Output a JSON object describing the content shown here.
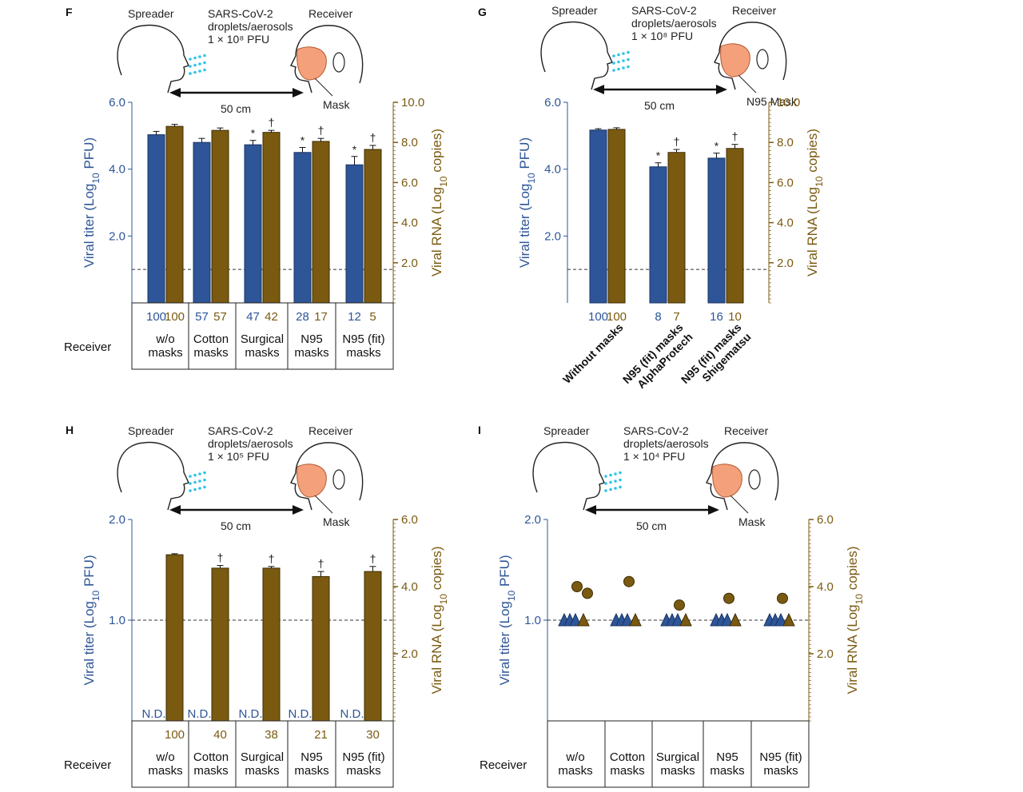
{
  "colors": {
    "titer": "#2d5597",
    "rna": "#7a5a10",
    "aerosol": "#2ec4e6",
    "mask": "#f4a07a",
    "dashed": "#333333"
  },
  "icons": [
    "spreader-head-icon",
    "receiver-head-icon",
    "aerosol-droplets-icon",
    "mask-icon",
    "double-arrow-icon"
  ],
  "chart_data": [
    {
      "panel": "F",
      "type": "bar",
      "diagram": {
        "spreader": "Spreader",
        "receiver": "Receiver",
        "virus_lines": [
          "SARS-CoV-2",
          "droplets/aerosols"
        ],
        "dose": "1 × 10⁸ PFU",
        "distance": "50 cm",
        "mask": "Mask"
      },
      "ylabel_left": "Viral titer (Log10 PFU)",
      "ylabel_right": "Viral RNA (Log10 copies)",
      "left_ticks": [
        "2.0",
        "4.0",
        "6.0"
      ],
      "right_ticks": [
        "2.0",
        "4.0",
        "6.0",
        "8.0",
        "10.0"
      ],
      "ylim_left": [
        0,
        6
      ],
      "ylim_right": [
        0,
        10
      ],
      "detection_limit": 1.0,
      "row_label": "Receiver",
      "categories": [
        [
          "w/o",
          "masks"
        ],
        [
          "Cotton",
          "masks"
        ],
        [
          "Surgical",
          "masks"
        ],
        [
          "N95",
          "masks"
        ],
        [
          "N95 (fit)",
          "masks"
        ]
      ],
      "series": [
        {
          "name": "Viral titer",
          "axis": "left",
          "values": [
            5.03,
            4.8,
            4.73,
            4.5,
            4.13
          ],
          "errors": [
            0.1,
            0.12,
            0.13,
            0.15,
            0.25
          ],
          "marks": [
            "",
            "",
            "*",
            "*",
            "*"
          ],
          "percent": [
            "100",
            "57",
            "47",
            "28",
            "12"
          ]
        },
        {
          "name": "Viral RNA",
          "axis": "right",
          "values": [
            8.8,
            8.6,
            8.5,
            8.05,
            7.65
          ],
          "errors": [
            0.1,
            0.12,
            0.1,
            0.15,
            0.2
          ],
          "marks": [
            "",
            "",
            "†",
            "†",
            "†"
          ],
          "percent": [
            "100",
            "57",
            "42",
            "17",
            "5"
          ]
        }
      ]
    },
    {
      "panel": "G",
      "type": "bar",
      "diagram": {
        "spreader": "Spreader",
        "receiver": "Receiver",
        "virus_lines": [
          "SARS-CoV-2",
          "droplets/aerosols"
        ],
        "dose": "1 × 10⁸ PFU",
        "distance": "50 cm",
        "mask": "N95 Mask"
      },
      "ylabel_left": "Viral titer (Log10 PFU)",
      "ylabel_right": "Viral RNA (Log10 copies)",
      "left_ticks": [
        "2.0",
        "4.0",
        "6.0"
      ],
      "right_ticks": [
        "2.0",
        "4.0",
        "6.0",
        "8.0",
        "10.0"
      ],
      "ylim_left": [
        0,
        6
      ],
      "ylim_right": [
        0,
        10
      ],
      "detection_limit": 1.0,
      "categories": [
        [
          "Without masks"
        ],
        [
          "N95 (fit) masks",
          "AlphaProtech"
        ],
        [
          "N95 (fit) masks",
          "Shigematsu"
        ]
      ],
      "series": [
        {
          "name": "Viral titer",
          "axis": "left",
          "values": [
            5.17,
            4.07,
            4.33
          ],
          "errors": [
            0.04,
            0.12,
            0.15
          ],
          "marks": [
            "",
            "*",
            "*"
          ],
          "percent": [
            "100",
            "8",
            "16"
          ]
        },
        {
          "name": "Viral RNA",
          "axis": "right",
          "values": [
            8.65,
            7.5,
            7.7
          ],
          "errors": [
            0.08,
            0.15,
            0.2
          ],
          "marks": [
            "",
            "†",
            "†"
          ],
          "percent": [
            "100",
            "7",
            "10"
          ]
        }
      ]
    },
    {
      "panel": "H",
      "type": "bar",
      "diagram": {
        "spreader": "Spreader",
        "receiver": "Receiver",
        "virus_lines": [
          "SARS-CoV-2",
          "droplets/aerosols"
        ],
        "dose": "1 × 10⁵ PFU",
        "distance": "50 cm",
        "mask": "Mask"
      },
      "ylabel_left": "Viral titer (Log10 PFU)",
      "ylabel_right": "Viral RNA (Log10 copies)",
      "left_ticks": [
        "1.0",
        "2.0"
      ],
      "right_ticks": [
        "2.0",
        "4.0",
        "6.0"
      ],
      "ylim_left": [
        0,
        2
      ],
      "ylim_right": [
        0,
        6
      ],
      "detection_limit": 1.0,
      "row_label": "Receiver",
      "categories": [
        [
          "w/o",
          "masks"
        ],
        [
          "Cotton",
          "masks"
        ],
        [
          "Surgical",
          "masks"
        ],
        [
          "N95",
          "masks"
        ],
        [
          "N95 (fit)",
          "masks"
        ]
      ],
      "series": [
        {
          "name": "Viral titer",
          "axis": "left",
          "values": [
            null,
            null,
            null,
            null,
            null
          ],
          "labels": [
            "N.D.",
            "N.D.",
            "N.D.",
            "N.D.",
            "N.D."
          ]
        },
        {
          "name": "Viral RNA",
          "axis": "right",
          "values": [
            4.95,
            4.55,
            4.55,
            4.3,
            4.45
          ],
          "errors": [
            0.03,
            0.08,
            0.05,
            0.15,
            0.15
          ],
          "marks": [
            "",
            "†",
            "†",
            "†",
            "†"
          ],
          "percent": [
            "100",
            "40",
            "38",
            "21",
            "30"
          ]
        }
      ]
    },
    {
      "panel": "I",
      "type": "scatter",
      "diagram": {
        "spreader": "Spreader",
        "receiver": "Receiver",
        "virus_lines": [
          "SARS-CoV-2",
          "droplets/aerosols"
        ],
        "dose": "1 × 10⁴ PFU",
        "distance": "50 cm",
        "mask": "Mask"
      },
      "ylabel_left": "Viral titer (Log10 PFU)",
      "ylabel_right": "Viral RNA (Log10 copies)",
      "left_ticks": [
        "1.0",
        "2.0"
      ],
      "right_ticks": [
        "2.0",
        "4.0",
        "6.0"
      ],
      "ylim_left": [
        0,
        2
      ],
      "ylim_right": [
        0,
        6
      ],
      "detection_limit": 1.0,
      "row_label": "Receiver",
      "categories": [
        [
          "w/o",
          "masks"
        ],
        [
          "Cotton",
          "masks"
        ],
        [
          "Surgical",
          "masks"
        ],
        [
          "N95",
          "masks"
        ],
        [
          "N95 (fit)",
          "masks"
        ]
      ],
      "titer_triangles": [
        3,
        3,
        3,
        3,
        3
      ],
      "rna_triangles": [
        1,
        1,
        1,
        1,
        1
      ],
      "rna_circles": [
        [
          4.0,
          3.8
        ],
        [
          4.15
        ],
        [
          3.45
        ],
        [
          3.65
        ],
        [
          3.65
        ]
      ]
    }
  ]
}
